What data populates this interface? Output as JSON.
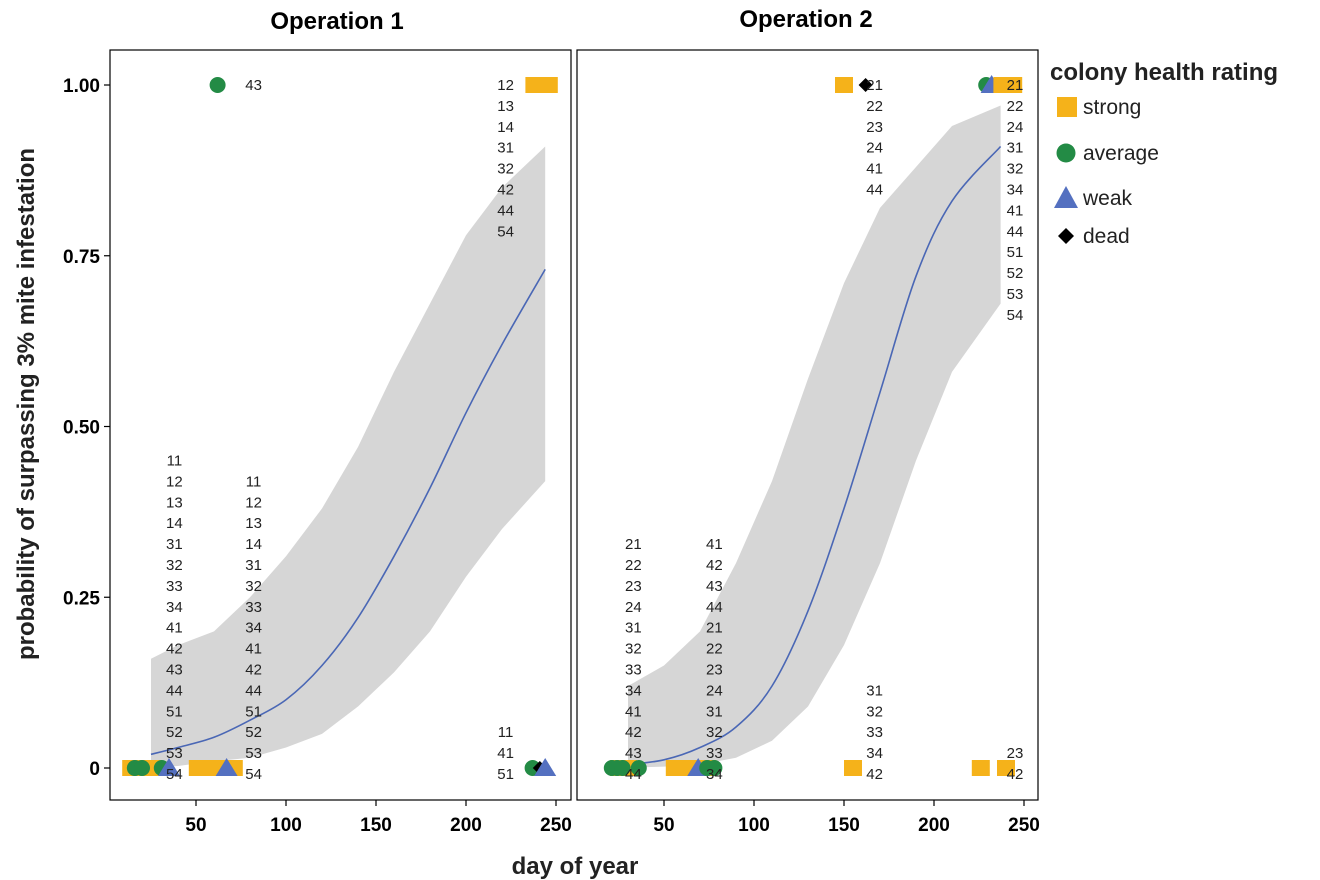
{
  "chart_data": {
    "type": "scatter",
    "xlabel": "day of year",
    "ylabel": "probability of surpassing 3% mite infestation",
    "xlim": [
      5,
      260
    ],
    "ylim": [
      -0.05,
      1.05
    ],
    "x_ticks": [
      50,
      100,
      150,
      200,
      250
    ],
    "y_ticks": [
      0,
      0.25,
      0.5,
      0.75,
      1.0
    ],
    "y_tick_labels": [
      "0",
      "0.25",
      "0.50",
      "0.75",
      "1.00"
    ],
    "legend": {
      "title": "colony health rating",
      "position": "right",
      "entries": [
        {
          "key": "strong",
          "label": "strong",
          "shape": "square",
          "color": "#F5B21A"
        },
        {
          "key": "average",
          "label": "average",
          "shape": "circle",
          "color": "#238B45"
        },
        {
          "key": "weak",
          "label": "weak",
          "shape": "triangle",
          "color": "#5470C0"
        },
        {
          "key": "dead",
          "label": "dead",
          "shape": "diamond",
          "color": "#000000"
        }
      ]
    },
    "fit_line_color": "#4A67B5",
    "band_color": "#D6D6D6",
    "panels": [
      {
        "title": "Operation 1",
        "fit": {
          "x": [
            25,
            40,
            60,
            80,
            100,
            120,
            140,
            160,
            180,
            200,
            220,
            244
          ],
          "y": [
            0.02,
            0.03,
            0.045,
            0.07,
            0.1,
            0.15,
            0.22,
            0.31,
            0.41,
            0.52,
            0.62,
            0.73
          ],
          "lower": [
            0.001,
            0.003,
            0.01,
            0.015,
            0.03,
            0.05,
            0.09,
            0.14,
            0.2,
            0.28,
            0.35,
            0.42
          ],
          "upper": [
            0.16,
            0.18,
            0.2,
            0.25,
            0.31,
            0.38,
            0.47,
            0.58,
            0.68,
            0.78,
            0.85,
            0.91
          ]
        },
        "points": [
          {
            "x": 14,
            "y": 0,
            "health": "strong"
          },
          {
            "x": 18,
            "y": 0,
            "health": "strong"
          },
          {
            "x": 22,
            "y": 0,
            "health": "strong"
          },
          {
            "x": 26,
            "y": 0,
            "health": "strong"
          },
          {
            "x": 16,
            "y": 0,
            "health": "average"
          },
          {
            "x": 20,
            "y": 0,
            "health": "average"
          },
          {
            "x": 31,
            "y": 0,
            "health": "average"
          },
          {
            "x": 35,
            "y": 0,
            "health": "weak"
          },
          {
            "x": 51,
            "y": 0,
            "health": "strong"
          },
          {
            "x": 55,
            "y": 0,
            "health": "strong"
          },
          {
            "x": 59,
            "y": 0,
            "health": "strong"
          },
          {
            "x": 63,
            "y": 0,
            "health": "strong"
          },
          {
            "x": 67,
            "y": 0,
            "health": "strong"
          },
          {
            "x": 71,
            "y": 0,
            "health": "strong"
          },
          {
            "x": 67,
            "y": 0,
            "health": "weak"
          },
          {
            "x": 62,
            "y": 1,
            "health": "average"
          },
          {
            "x": 237,
            "y": 0,
            "health": "average"
          },
          {
            "x": 241,
            "y": 0,
            "health": "dead"
          },
          {
            "x": 244,
            "y": 0,
            "health": "weak"
          },
          {
            "x": 238,
            "y": 1,
            "health": "strong"
          },
          {
            "x": 242,
            "y": 1,
            "health": "strong"
          },
          {
            "x": 246,
            "y": 1,
            "health": "strong"
          }
        ],
        "id_labels": [
          {
            "x": 38,
            "y": 0,
            "ids": [
              "11",
              "12",
              "13",
              "14",
              "31",
              "32",
              "33",
              "34",
              "41",
              "42",
              "43",
              "44",
              "51",
              "52",
              "53",
              "54"
            ]
          },
          {
            "x": 82,
            "y": 0,
            "ids": [
              "11",
              "12",
              "13",
              "14",
              "31",
              "32",
              "33",
              "34",
              "41",
              "42",
              "44",
              "51",
              "52",
              "53",
              "54"
            ]
          },
          {
            "x": 82,
            "y": 1,
            "ids": [
              "43"
            ]
          },
          {
            "x": 222,
            "y": 0,
            "ids": [
              "11",
              "41",
              "51"
            ]
          },
          {
            "x": 222,
            "y": 1,
            "ids": [
              "12",
              "13",
              "14",
              "31",
              "32",
              "42",
              "44",
              "54"
            ]
          }
        ]
      },
      {
        "title": "Operation 2",
        "fit": {
          "x": [
            30,
            50,
            70,
            90,
            110,
            130,
            150,
            170,
            190,
            210,
            237
          ],
          "y": [
            0.005,
            0.012,
            0.03,
            0.06,
            0.12,
            0.23,
            0.38,
            0.55,
            0.72,
            0.83,
            0.91
          ],
          "lower": [
            0.0005,
            0.002,
            0.005,
            0.015,
            0.04,
            0.09,
            0.18,
            0.3,
            0.45,
            0.58,
            0.68
          ],
          "upper": [
            0.12,
            0.15,
            0.2,
            0.3,
            0.42,
            0.57,
            0.71,
            0.82,
            0.88,
            0.94,
            0.97
          ]
        },
        "points": [
          {
            "x": 25,
            "y": 0,
            "health": "strong"
          },
          {
            "x": 30,
            "y": 0,
            "health": "strong"
          },
          {
            "x": 21,
            "y": 0,
            "health": "average"
          },
          {
            "x": 24,
            "y": 0,
            "health": "average"
          },
          {
            "x": 27,
            "y": 0,
            "health": "average"
          },
          {
            "x": 36,
            "y": 0,
            "health": "average"
          },
          {
            "x": 56,
            "y": 0,
            "health": "strong"
          },
          {
            "x": 62,
            "y": 0,
            "health": "strong"
          },
          {
            "x": 66,
            "y": 0,
            "health": "strong"
          },
          {
            "x": 74,
            "y": 0,
            "health": "strong"
          },
          {
            "x": 69,
            "y": 0,
            "health": "weak"
          },
          {
            "x": 74,
            "y": 0,
            "health": "average"
          },
          {
            "x": 78,
            "y": 0,
            "health": "average"
          },
          {
            "x": 155,
            "y": 0,
            "health": "strong"
          },
          {
            "x": 226,
            "y": 0,
            "health": "strong"
          },
          {
            "x": 240,
            "y": 0,
            "health": "strong"
          },
          {
            "x": 150,
            "y": 1,
            "health": "strong"
          },
          {
            "x": 162,
            "y": 1,
            "health": "dead"
          },
          {
            "x": 229,
            "y": 1,
            "health": "average"
          },
          {
            "x": 232,
            "y": 1,
            "health": "weak"
          },
          {
            "x": 238,
            "y": 1,
            "health": "strong"
          },
          {
            "x": 244,
            "y": 1,
            "health": "strong"
          }
        ],
        "id_labels": [
          {
            "x": 33,
            "y": 0,
            "ids": [
              "21",
              "22",
              "23",
              "24",
              "31",
              "32",
              "33",
              "34",
              "41",
              "42",
              "43",
              "44"
            ]
          },
          {
            "x": 78,
            "y": 0,
            "ids": [
              "41",
              "42",
              "43",
              "44",
              "21",
              "22",
              "23",
              "24",
              "31",
              "32",
              "33",
              "34"
            ]
          },
          {
            "x": 167,
            "y": 0,
            "ids": [
              "31",
              "32",
              "33",
              "34",
              "42"
            ]
          },
          {
            "x": 167,
            "y": 1,
            "ids": [
              "21",
              "22",
              "23",
              "24",
              "41",
              "44"
            ]
          },
          {
            "x": 245,
            "y": 0,
            "ids": [
              "23",
              "42"
            ]
          },
          {
            "x": 245,
            "y": 1,
            "ids": [
              "21",
              "22",
              "24",
              "31",
              "32",
              "34",
              "41",
              "44",
              "51",
              "52",
              "53",
              "54"
            ]
          }
        ]
      }
    ]
  }
}
